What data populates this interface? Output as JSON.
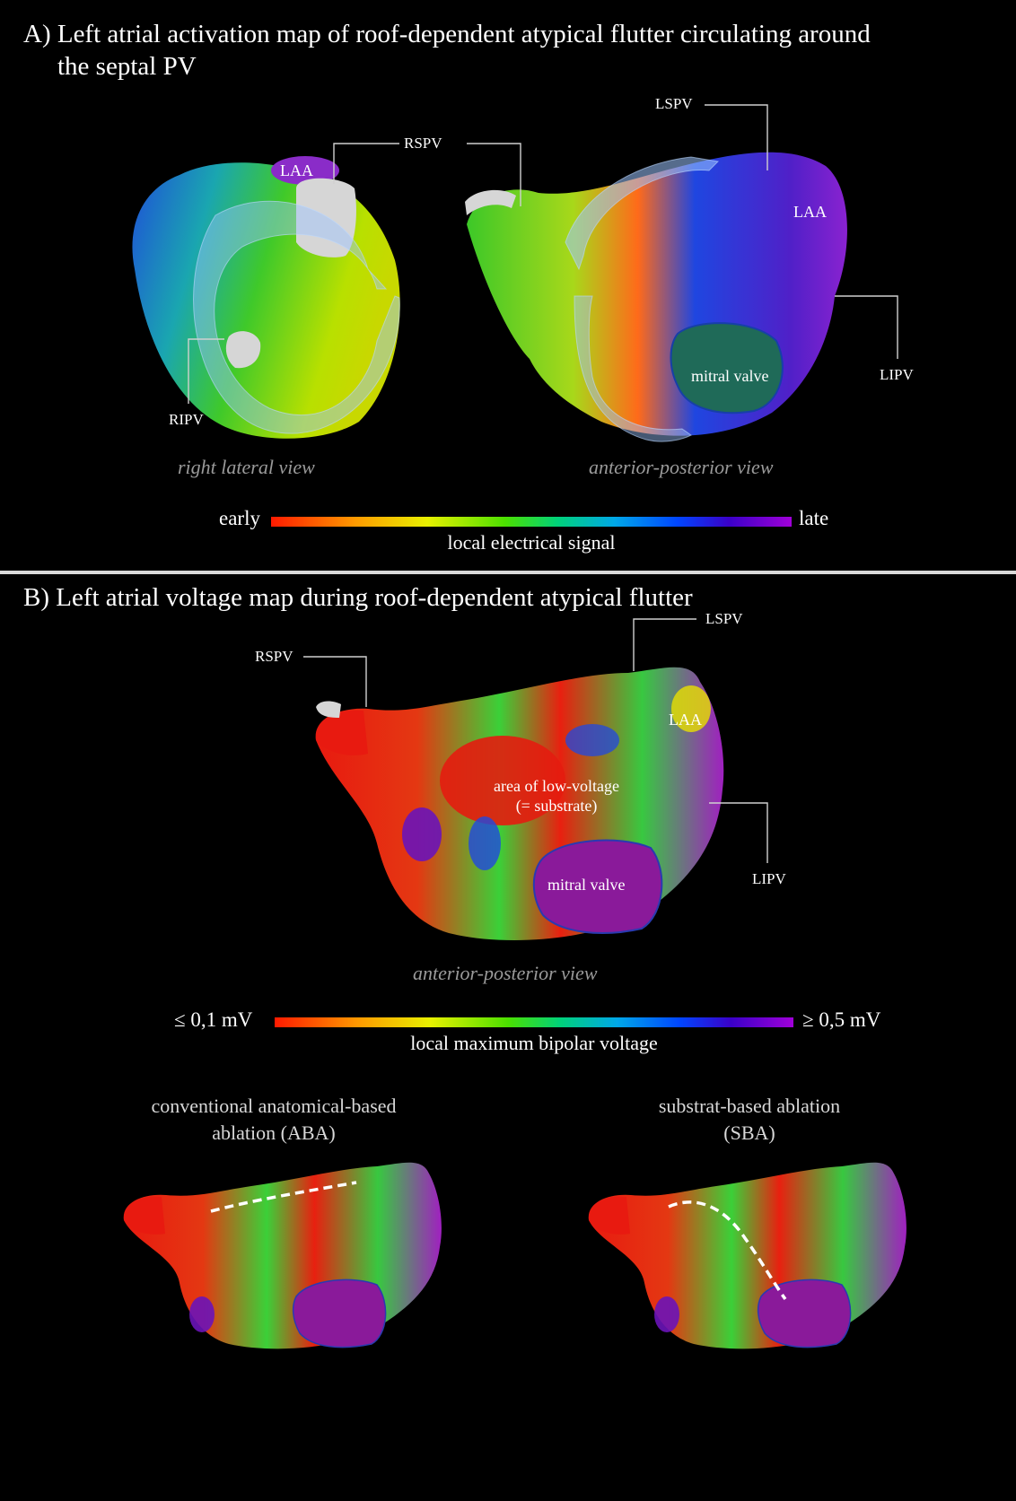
{
  "panel_a": {
    "title_line1": "A)  Left atrial activation map of roof-dependent atypical flutter circulating around",
    "title_line2": "the septal PV",
    "labels": {
      "laa_left": "LAA",
      "rspv": "RSPV",
      "ripv": "RIPV",
      "lspv": "LSPV",
      "laa_right": "LAA",
      "lipv": "LIPV",
      "mitral_valve": "mitral valve"
    },
    "view_left": "right lateral view",
    "view_right": "anterior-posterior view",
    "scale": {
      "left": "early",
      "right": "late",
      "caption": "local electrical signal"
    }
  },
  "panel_b": {
    "title": "B) Left atrial voltage map during roof-dependent atypical flutter",
    "labels": {
      "rspv": "RSPV",
      "lspv": "LSPV",
      "laa": "LAA",
      "lipv": "LIPV",
      "low_voltage_line1": "area of low-voltage",
      "low_voltage_line2": "(= substrate)",
      "mitral_valve": "mitral valve"
    },
    "view": "anterior-posterior view",
    "scale": {
      "left": "≤ 0,1 mV",
      "right": "≥ 0,5 mV",
      "caption": "local maximum bipolar voltage"
    },
    "aba": {
      "line1": "conventional anatomical-based",
      "line2": "ablation (ABA)"
    },
    "sba": {
      "line1": "substrat-based ablation",
      "line2": "(SBA)"
    }
  },
  "colors": {
    "background": "#000000",
    "divider": "#d9d9d9",
    "view_text": "#9a9a9a"
  }
}
